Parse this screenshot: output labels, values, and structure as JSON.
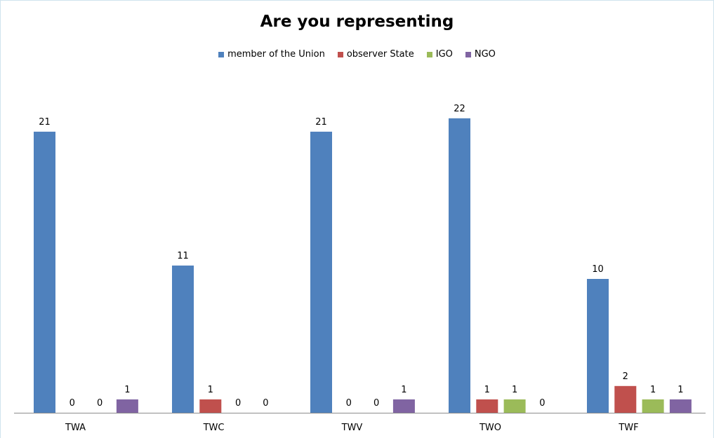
{
  "chart_data": {
    "type": "bar",
    "title": "Are you representing",
    "xlabel": "",
    "ylabel": "",
    "categories": [
      "TWA",
      "TWC",
      "TWV",
      "TWO",
      "TWF"
    ],
    "series": [
      {
        "name": "member of the Union",
        "color": "#4f81bd",
        "values": [
          21,
          11,
          21,
          22,
          10
        ]
      },
      {
        "name": "observer State",
        "color": "#c0504d",
        "values": [
          0,
          1,
          0,
          1,
          2
        ]
      },
      {
        "name": "IGO",
        "color": "#9bbb59",
        "values": [
          0,
          0,
          0,
          1,
          1
        ]
      },
      {
        "name": "NGO",
        "color": "#8064a2",
        "values": [
          1,
          0,
          1,
          0,
          1
        ]
      }
    ],
    "ylim": [
      0,
      22
    ],
    "grid": false,
    "legend_position": "top",
    "data_labels": true
  }
}
